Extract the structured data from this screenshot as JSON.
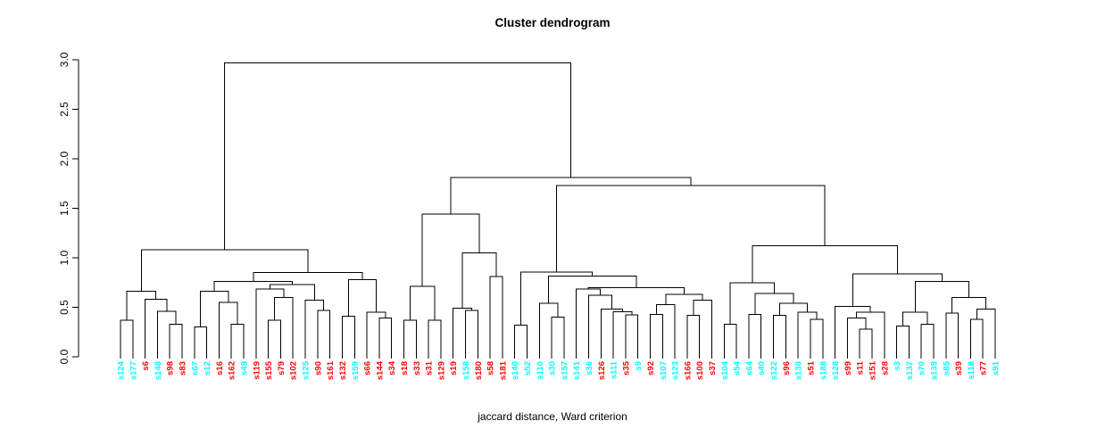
{
  "title": "Cluster dendrogram",
  "xlabel": "jaccard distance, Ward criterion",
  "chart_data": {
    "type": "dendrogram",
    "title": "Cluster dendrogram",
    "xlabel": "jaccard distance, Ward criterion",
    "ylabel": "",
    "ylim": [
      0,
      3
    ],
    "yticks": [
      "0.0",
      "0.5",
      "1.0",
      "1.5",
      "2.0",
      "2.5",
      "3.0"
    ],
    "grid": false,
    "line_color": "#000000",
    "label_colors": {
      "cyan": "#00ffff",
      "red": "#ff0000"
    },
    "leaves": [
      {
        "label": "s124",
        "color": "#00ffff"
      },
      {
        "label": "s177",
        "color": "#00ffff"
      },
      {
        "label": "s6",
        "color": "#ff0000"
      },
      {
        "label": "s148",
        "color": "#00ffff"
      },
      {
        "label": "s98",
        "color": "#ff0000"
      },
      {
        "label": "s83",
        "color": "#ff0000"
      },
      {
        "label": "s67",
        "color": "#00ffff"
      },
      {
        "label": "s12",
        "color": "#00ffff"
      },
      {
        "label": "s16",
        "color": "#ff0000"
      },
      {
        "label": "s162",
        "color": "#ff0000"
      },
      {
        "label": "s49",
        "color": "#00ffff"
      },
      {
        "label": "s119",
        "color": "#ff0000"
      },
      {
        "label": "s155",
        "color": "#ff0000"
      },
      {
        "label": "s79",
        "color": "#ff0000"
      },
      {
        "label": "s102",
        "color": "#ff0000"
      },
      {
        "label": "s125",
        "color": "#00ffff"
      },
      {
        "label": "s90",
        "color": "#ff0000"
      },
      {
        "label": "s161",
        "color": "#ff0000"
      },
      {
        "label": "s132",
        "color": "#ff0000"
      },
      {
        "label": "s159",
        "color": "#00ffff"
      },
      {
        "label": "s66",
        "color": "#ff0000"
      },
      {
        "label": "s144",
        "color": "#ff0000"
      },
      {
        "label": "s34",
        "color": "#ff0000"
      },
      {
        "label": "s18",
        "color": "#ff0000"
      },
      {
        "label": "s33",
        "color": "#ff0000"
      },
      {
        "label": "s31",
        "color": "#ff0000"
      },
      {
        "label": "s129",
        "color": "#ff0000"
      },
      {
        "label": "s19",
        "color": "#ff0000"
      },
      {
        "label": "s158",
        "color": "#00ffff"
      },
      {
        "label": "s180",
        "color": "#ff0000"
      },
      {
        "label": "s58",
        "color": "#ff0000"
      },
      {
        "label": "s181",
        "color": "#ff0000"
      },
      {
        "label": "s140",
        "color": "#00ffff"
      },
      {
        "label": "s52",
        "color": "#00ffff"
      },
      {
        "label": "s110",
        "color": "#00ffff"
      },
      {
        "label": "s30",
        "color": "#00ffff"
      },
      {
        "label": "s157",
        "color": "#00ffff"
      },
      {
        "label": "s141",
        "color": "#00ffff"
      },
      {
        "label": "s36",
        "color": "#00ffff"
      },
      {
        "label": "s126",
        "color": "#ff0000"
      },
      {
        "label": "s111",
        "color": "#00ffff"
      },
      {
        "label": "s35",
        "color": "#ff0000"
      },
      {
        "label": "s9",
        "color": "#00ffff"
      },
      {
        "label": "s92",
        "color": "#ff0000"
      },
      {
        "label": "s107",
        "color": "#00ffff"
      },
      {
        "label": "s123",
        "color": "#00ffff"
      },
      {
        "label": "s166",
        "color": "#ff0000"
      },
      {
        "label": "s100",
        "color": "#ff0000"
      },
      {
        "label": "s37",
        "color": "#ff0000"
      },
      {
        "label": "s104",
        "color": "#00ffff"
      },
      {
        "label": "s54",
        "color": "#00ffff"
      },
      {
        "label": "s64",
        "color": "#00ffff"
      },
      {
        "label": "s40",
        "color": "#00ffff"
      },
      {
        "label": "s122",
        "color": "#00ffff"
      },
      {
        "label": "s96",
        "color": "#ff0000"
      },
      {
        "label": "s130",
        "color": "#00ffff"
      },
      {
        "label": "s51",
        "color": "#ff0000"
      },
      {
        "label": "s188",
        "color": "#00ffff"
      },
      {
        "label": "s128",
        "color": "#00ffff"
      },
      {
        "label": "s99",
        "color": "#ff0000"
      },
      {
        "label": "s11",
        "color": "#ff0000"
      },
      {
        "label": "s151",
        "color": "#ff0000"
      },
      {
        "label": "s28",
        "color": "#ff0000"
      },
      {
        "label": "s3",
        "color": "#00ffff"
      },
      {
        "label": "s137",
        "color": "#00ffff"
      },
      {
        "label": "s70",
        "color": "#00ffff"
      },
      {
        "label": "s139",
        "color": "#00ffff"
      },
      {
        "label": "s85",
        "color": "#00ffff"
      },
      {
        "label": "s39",
        "color": "#ff0000"
      },
      {
        "label": "s118",
        "color": "#00ffff"
      },
      {
        "label": "s77",
        "color": "#ff0000"
      },
      {
        "label": "s91",
        "color": "#00ffff"
      }
    ],
    "tree": {
      "h": 2.97,
      "c": [
        {
          "h": 1.08,
          "c": [
            {
              "h": 0.66,
              "c": [
                {
                  "h": 0.37,
                  "c": [
                    "s124",
                    "s177"
                  ]
                },
                {
                  "h": 0.58,
                  "c": [
                    "s6",
                    {
                      "h": 0.46,
                      "c": [
                        "s148",
                        {
                          "h": 0.33,
                          "c": [
                            "s98",
                            "s83"
                          ]
                        }
                      ]
                    }
                  ]
                }
              ]
            },
            {
              "h": 0.85,
              "c": [
                {
                  "h": 0.76,
                  "c": [
                    {
                      "h": 0.66,
                      "c": [
                        {
                          "h": 0.3,
                          "c": [
                            "s67",
                            "s12"
                          ]
                        },
                        {
                          "h": 0.55,
                          "c": [
                            "s16",
                            {
                              "h": 0.33,
                              "c": [
                                "s162",
                                "s49"
                              ]
                            }
                          ]
                        }
                      ]
                    },
                    {
                      "h": 0.73,
                      "c": [
                        {
                          "h": 0.686,
                          "c": [
                            "s119",
                            {
                              "h": 0.6,
                              "c": [
                                {
                                  "h": 0.37,
                                  "c": [
                                    "s155",
                                    "s79"
                                  ]
                                },
                                "s102"
                              ]
                            }
                          ]
                        },
                        {
                          "h": 0.57,
                          "c": [
                            "s125",
                            {
                              "h": 0.47,
                              "c": [
                                "s90",
                                "s161"
                              ]
                            }
                          ]
                        }
                      ]
                    }
                  ]
                },
                {
                  "h": 0.78,
                  "c": [
                    {
                      "h": 0.41,
                      "c": [
                        "s132",
                        "s159"
                      ]
                    },
                    {
                      "h": 0.45,
                      "c": [
                        "s66",
                        {
                          "h": 0.39,
                          "c": [
                            "s144",
                            "s34"
                          ]
                        }
                      ]
                    }
                  ]
                }
              ]
            }
          ]
        },
        {
          "h": 1.81,
          "c": [
            {
              "h": 1.44,
              "c": [
                {
                  "h": 0.71,
                  "c": [
                    {
                      "h": 0.37,
                      "c": [
                        "s18",
                        "s33"
                      ]
                    },
                    {
                      "h": 0.37,
                      "c": [
                        "s31",
                        "s129"
                      ]
                    }
                  ]
                },
                {
                  "h": 1.05,
                  "c": [
                    {
                      "h": 0.49,
                      "c": [
                        "s19",
                        {
                          "h": 0.47,
                          "c": [
                            "s158",
                            "s180"
                          ]
                        }
                      ]
                    },
                    {
                      "h": 0.81,
                      "c": [
                        "s58",
                        "s181"
                      ]
                    }
                  ]
                }
              ]
            },
            {
              "h": 1.73,
              "c": [
                {
                  "h": 0.855,
                  "c": [
                    {
                      "h": 0.32,
                      "c": [
                        "s140",
                        "s52"
                      ]
                    },
                    {
                      "h": 0.815,
                      "c": [
                        {
                          "h": 0.54,
                          "c": [
                            "s110",
                            {
                              "h": 0.4,
                              "c": [
                                "s30",
                                "s157"
                              ]
                            }
                          ]
                        },
                        {
                          "h": 0.7,
                          "c": [
                            {
                              "h": 0.686,
                              "c": [
                                "s141",
                                {
                                  "h": 0.62,
                                  "c": [
                                    "s36",
                                    {
                                      "h": 0.48,
                                      "c": [
                                        "s126",
                                        {
                                          "h": 0.455,
                                          "c": [
                                            "s111",
                                            {
                                              "h": 0.425,
                                              "c": [
                                                "s35",
                                                "s9"
                                              ]
                                            }
                                          ]
                                        }
                                      ]
                                    }
                                  ]
                                }
                              ]
                            },
                            {
                              "h": 0.63,
                              "c": [
                                {
                                  "h": 0.527,
                                  "c": [
                                    {
                                      "h": 0.43,
                                      "c": [
                                        "s92",
                                        "s107"
                                      ]
                                    },
                                    "s123"
                                  ]
                                },
                                {
                                  "h": 0.57,
                                  "c": [
                                    {
                                      "h": 0.42,
                                      "c": [
                                        "s166",
                                        "s100"
                                      ]
                                    },
                                    "s37"
                                  ]
                                }
                              ]
                            }
                          ]
                        }
                      ]
                    }
                  ]
                },
                {
                  "h": 1.12,
                  "c": [
                    {
                      "h": 0.75,
                      "c": [
                        {
                          "h": 0.33,
                          "c": [
                            "s104",
                            "s54"
                          ]
                        },
                        {
                          "h": 0.64,
                          "c": [
                            {
                              "h": 0.43,
                              "c": [
                                "s64",
                                "s40"
                              ]
                            },
                            {
                              "h": 0.54,
                              "c": [
                                {
                                  "h": 0.42,
                                  "c": [
                                    "s122",
                                    "s96"
                                  ]
                                },
                                {
                                  "h": 0.45,
                                  "c": [
                                    "s130",
                                    {
                                      "h": 0.38,
                                      "c": [
                                        "s51",
                                        "s188"
                                      ]
                                    }
                                  ]
                                }
                              ]
                            }
                          ]
                        }
                      ]
                    },
                    {
                      "h": 0.84,
                      "c": [
                        {
                          "h": 0.51,
                          "c": [
                            "s128",
                            {
                              "h": 0.45,
                              "c": [
                                {
                                  "h": 0.39,
                                  "c": [
                                    "s99",
                                    {
                                      "h": 0.28,
                                      "c": [
                                        "s11",
                                        "s151"
                                      ]
                                    }
                                  ]
                                },
                                "s28"
                              ]
                            }
                          ]
                        },
                        {
                          "h": 0.76,
                          "c": [
                            {
                              "h": 0.452,
                              "c": [
                                {
                                  "h": 0.31,
                                  "c": [
                                    "s3",
                                    "s137"
                                  ]
                                },
                                {
                                  "h": 0.33,
                                  "c": [
                                    "s70",
                                    "s139"
                                  ]
                                }
                              ]
                            },
                            {
                              "h": 0.6,
                              "c": [
                                {
                                  "h": 0.44,
                                  "c": [
                                    "s85",
                                    "s39"
                                  ]
                                },
                                {
                                  "h": 0.48,
                                  "c": [
                                    {
                                      "h": 0.38,
                                      "c": [
                                        "s118",
                                        "s77"
                                      ]
                                    },
                                    "s91"
                                  ]
                                }
                              ]
                            }
                          ]
                        }
                      ]
                    }
                  ]
                }
              ]
            }
          ]
        }
      ]
    }
  }
}
